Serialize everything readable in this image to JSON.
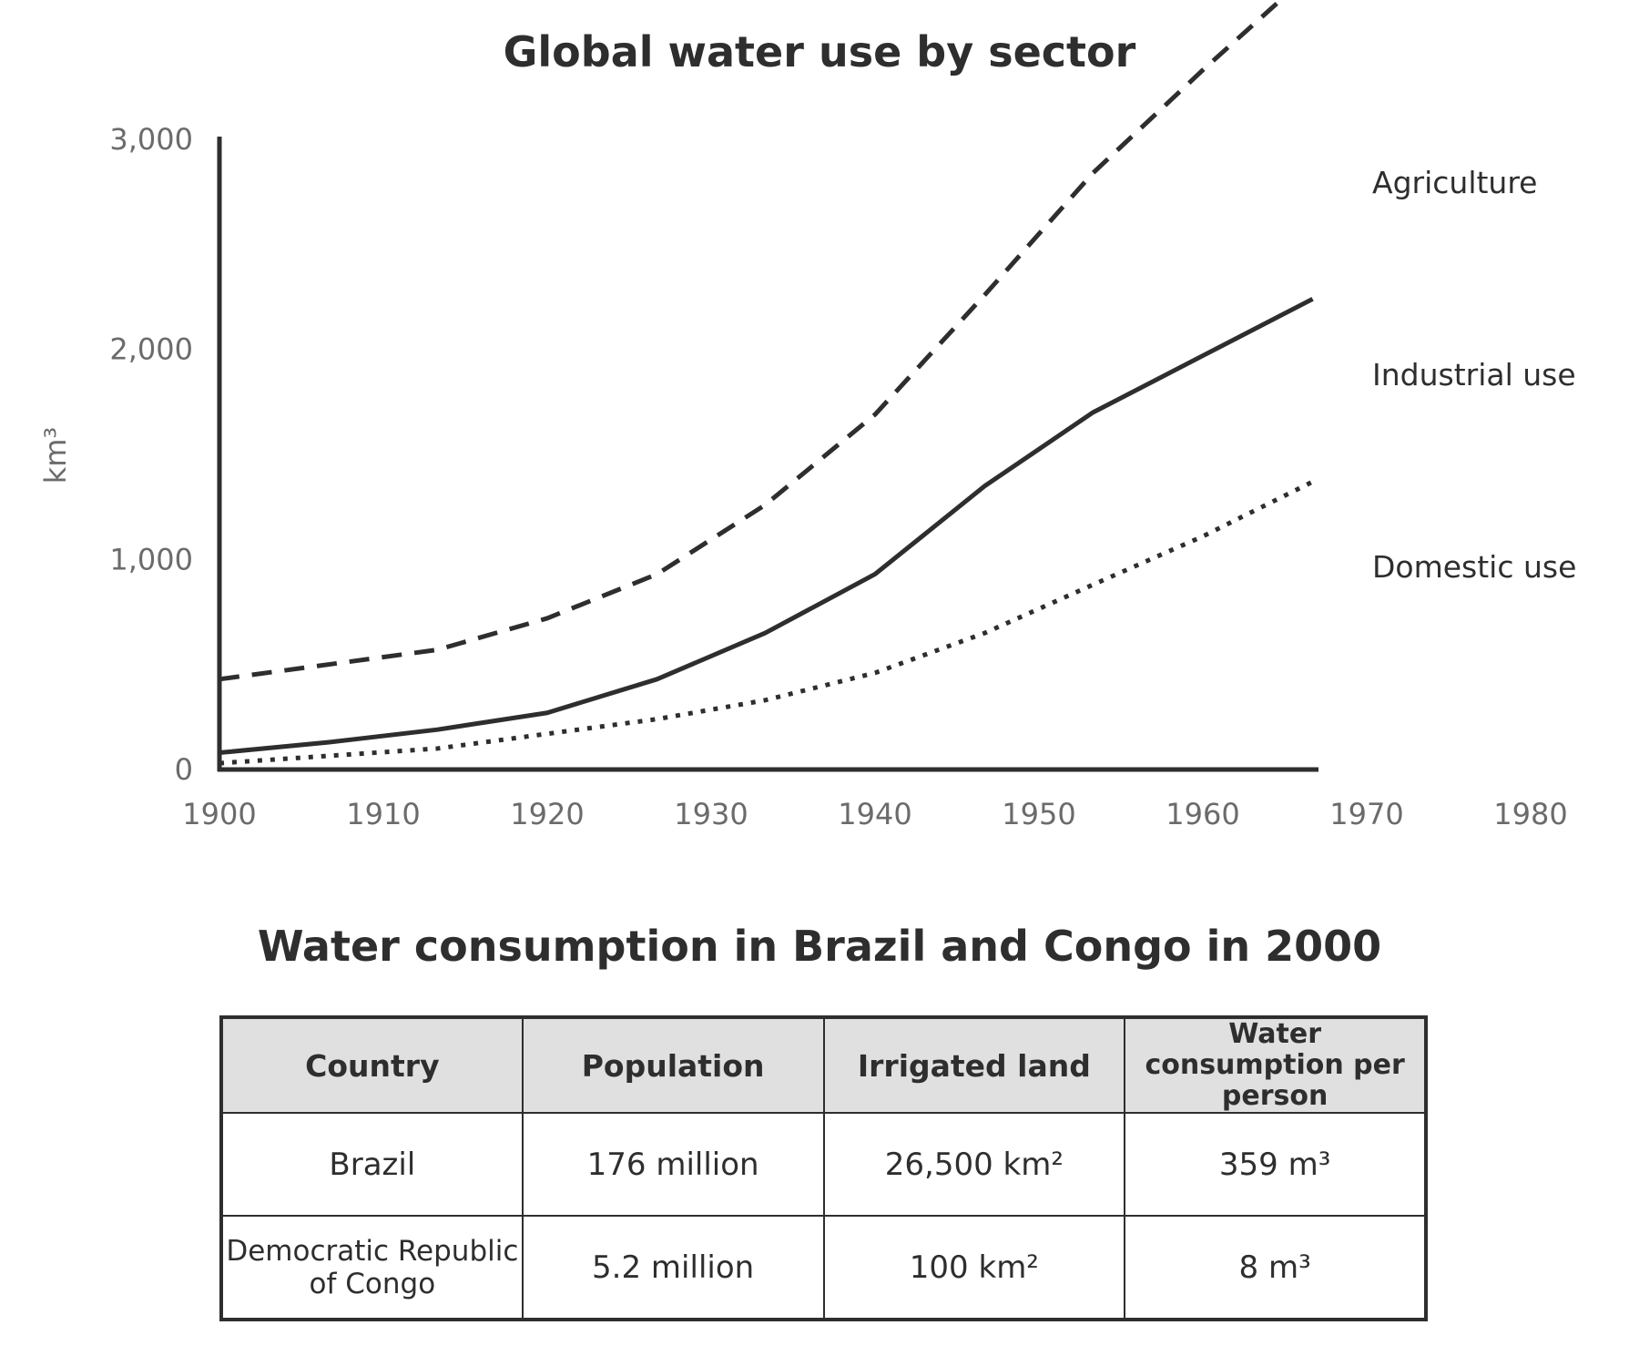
{
  "chart_data": {
    "type": "line",
    "title": "Global water use by sector",
    "xlabel": "",
    "ylabel": "km³",
    "xlim": [
      1900,
      1980
    ],
    "ylim": [
      0,
      3000
    ],
    "x_ticks": [
      "1900",
      "1910",
      "1920",
      "1930",
      "1940",
      "1950",
      "1960",
      "1970",
      "1980"
    ],
    "y_ticks": [
      {
        "value": 0,
        "label": "0"
      },
      {
        "value": 1000,
        "label": "1,000"
      },
      {
        "value": 2000,
        "label": "2,000"
      },
      {
        "value": 3000,
        "label": "3,000"
      }
    ],
    "grid": false,
    "legend": "labels at line ends (right)",
    "series": [
      {
        "name": "Agriculture",
        "style": "dashed",
        "x": [
          1900,
          1913.3,
          1920,
          1926.7,
          1933.3,
          1940,
          1946.7,
          1953.3,
          1960,
          1966.7
        ],
        "y": [
          430,
          570,
          720,
          930,
          1260,
          1690,
          2260,
          2840,
          3330,
          3800
        ]
      },
      {
        "name": "Industrial use",
        "style": "solid",
        "x": [
          1900,
          1906.7,
          1913.3,
          1920,
          1926.7,
          1933.3,
          1940,
          1946.7,
          1953.3,
          1960,
          1966.7
        ],
        "y": [
          80,
          130,
          190,
          270,
          430,
          650,
          930,
          1350,
          1700,
          1970,
          2240
        ]
      },
      {
        "name": "Domestic use",
        "style": "dotted",
        "x": [
          1900,
          1913.3,
          1920,
          1926.7,
          1933.3,
          1940,
          1946.7,
          1953.3,
          1960,
          1966.7
        ],
        "y": [
          30,
          100,
          170,
          240,
          330,
          460,
          650,
          880,
          1110,
          1370
        ]
      }
    ]
  },
  "table": {
    "title": "Water consumption in Brazil and Congo in 2000",
    "headers": [
      "Country",
      "Population",
      "Irrigated land",
      "Water consumption per person"
    ],
    "rows": [
      [
        "Brazil",
        "176 million",
        "26,500 km²",
        "359 m³"
      ],
      [
        "Democratic Republic of Congo",
        "5.2 million",
        "100 km²",
        "8 m³"
      ]
    ]
  }
}
